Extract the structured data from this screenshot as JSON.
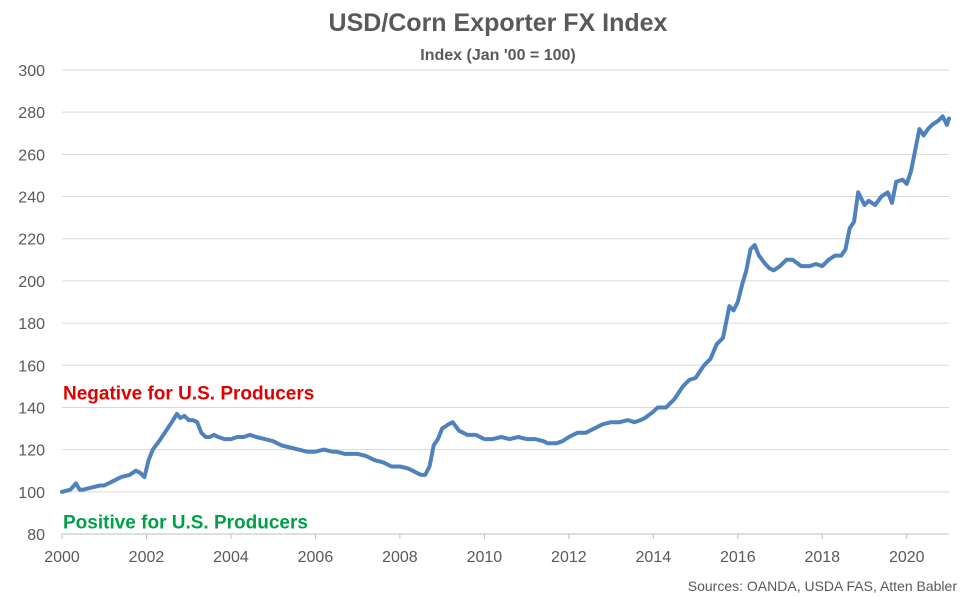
{
  "chart_data": {
    "type": "line",
    "title": "USD/Corn Exporter FX Index",
    "subtitle": "Index (Jan '00 = 100)",
    "xlabel": "",
    "ylabel": "",
    "xlim": [
      2000,
      2021
    ],
    "ylim": [
      80,
      300
    ],
    "y_ticks": [
      80,
      100,
      120,
      140,
      160,
      180,
      200,
      220,
      240,
      260,
      280,
      300
    ],
    "x_ticks": [
      2000,
      2002,
      2004,
      2006,
      2008,
      2010,
      2012,
      2014,
      2016,
      2018,
      2020
    ],
    "grid": true,
    "line_color": "#4f81bd",
    "annotations": [
      {
        "text": "Negative for U.S. Producers",
        "color": "#e00000",
        "y": 147
      },
      {
        "text": "Positive for U.S. Producers",
        "color": "#00a04a",
        "y": 86
      }
    ],
    "source": "Sources: OANDA, USDA FAS, Atten Babler",
    "series": [
      {
        "x": [
          2000.0,
          2000.2,
          2000.33,
          2000.42,
          2000.5,
          2000.7,
          2000.9,
          2001.0,
          2001.2,
          2001.4,
          2001.6,
          2001.75,
          2001.85,
          2001.95,
          2002.05,
          2002.15,
          2002.3,
          2002.5,
          2002.6,
          2002.72,
          2002.8,
          2002.9,
          2003.0,
          2003.1,
          2003.2,
          2003.3,
          2003.4,
          2003.5,
          2003.6,
          2003.7,
          2003.85,
          2004.0,
          2004.15,
          2004.3,
          2004.45,
          2004.6,
          2004.8,
          2005.0,
          2005.2,
          2005.4,
          2005.6,
          2005.8,
          2006.0,
          2006.2,
          2006.4,
          2006.5,
          2006.7,
          2007.0,
          2007.2,
          2007.4,
          2007.6,
          2007.8,
          2008.0,
          2008.2,
          2008.4,
          2008.5,
          2008.6,
          2008.7,
          2008.8,
          2008.9,
          2009.0,
          2009.15,
          2009.25,
          2009.4,
          2009.6,
          2009.8,
          2010.0,
          2010.2,
          2010.4,
          2010.6,
          2010.8,
          2011.0,
          2011.2,
          2011.4,
          2011.5,
          2011.7,
          2011.85,
          2012.0,
          2012.2,
          2012.4,
          2012.6,
          2012.8,
          2013.0,
          2013.2,
          2013.4,
          2013.55,
          2013.7,
          2013.8,
          2014.0,
          2014.1,
          2014.3,
          2014.5,
          2014.7,
          2014.85,
          2015.0,
          2015.1,
          2015.2,
          2015.35,
          2015.5,
          2015.65,
          2015.8,
          2015.9,
          2016.0,
          2016.1,
          2016.2,
          2016.3,
          2016.4,
          2016.5,
          2016.65,
          2016.75,
          2016.85,
          2017.0,
          2017.15,
          2017.3,
          2017.5,
          2017.7,
          2017.85,
          2018.0,
          2018.15,
          2018.3,
          2018.45,
          2018.55,
          2018.65,
          2018.75,
          2018.85,
          2019.0,
          2019.1,
          2019.25,
          2019.4,
          2019.55,
          2019.65,
          2019.75,
          2019.9,
          2020.0,
          2020.1,
          2020.2,
          2020.3,
          2020.4,
          2020.5,
          2020.6,
          2020.75,
          2020.85,
          2020.95,
          2021.0
        ],
        "values": [
          100,
          101,
          104,
          101,
          101,
          102,
          103,
          103,
          105,
          107,
          108,
          110,
          109,
          107,
          115,
          120,
          124,
          130,
          133,
          137,
          135,
          136,
          134,
          134,
          133,
          128,
          126,
          126,
          127,
          126,
          125,
          125,
          126,
          126,
          127,
          126,
          125,
          124,
          122,
          121,
          120,
          119,
          119,
          120,
          119,
          119,
          118,
          118,
          117,
          115,
          114,
          112,
          112,
          111,
          109,
          108,
          108,
          112,
          122,
          125,
          130,
          132,
          133,
          129,
          127,
          127,
          125,
          125,
          126,
          125,
          126,
          125,
          125,
          124,
          123,
          123,
          124,
          126,
          128,
          128,
          130,
          132,
          133,
          133,
          134,
          133,
          134,
          135,
          138,
          140,
          140,
          144,
          150,
          153,
          154,
          157,
          160,
          163,
          170,
          173,
          188,
          186,
          190,
          198,
          205,
          215,
          217,
          212,
          208,
          206,
          205,
          207,
          210,
          210,
          207,
          207,
          208,
          207,
          210,
          212,
          212,
          215,
          225,
          228,
          242,
          236,
          238,
          236,
          240,
          242,
          237,
          247,
          248,
          246,
          252,
          262,
          272,
          269,
          272,
          274,
          276,
          278,
          274,
          277
        ]
      }
    ]
  }
}
